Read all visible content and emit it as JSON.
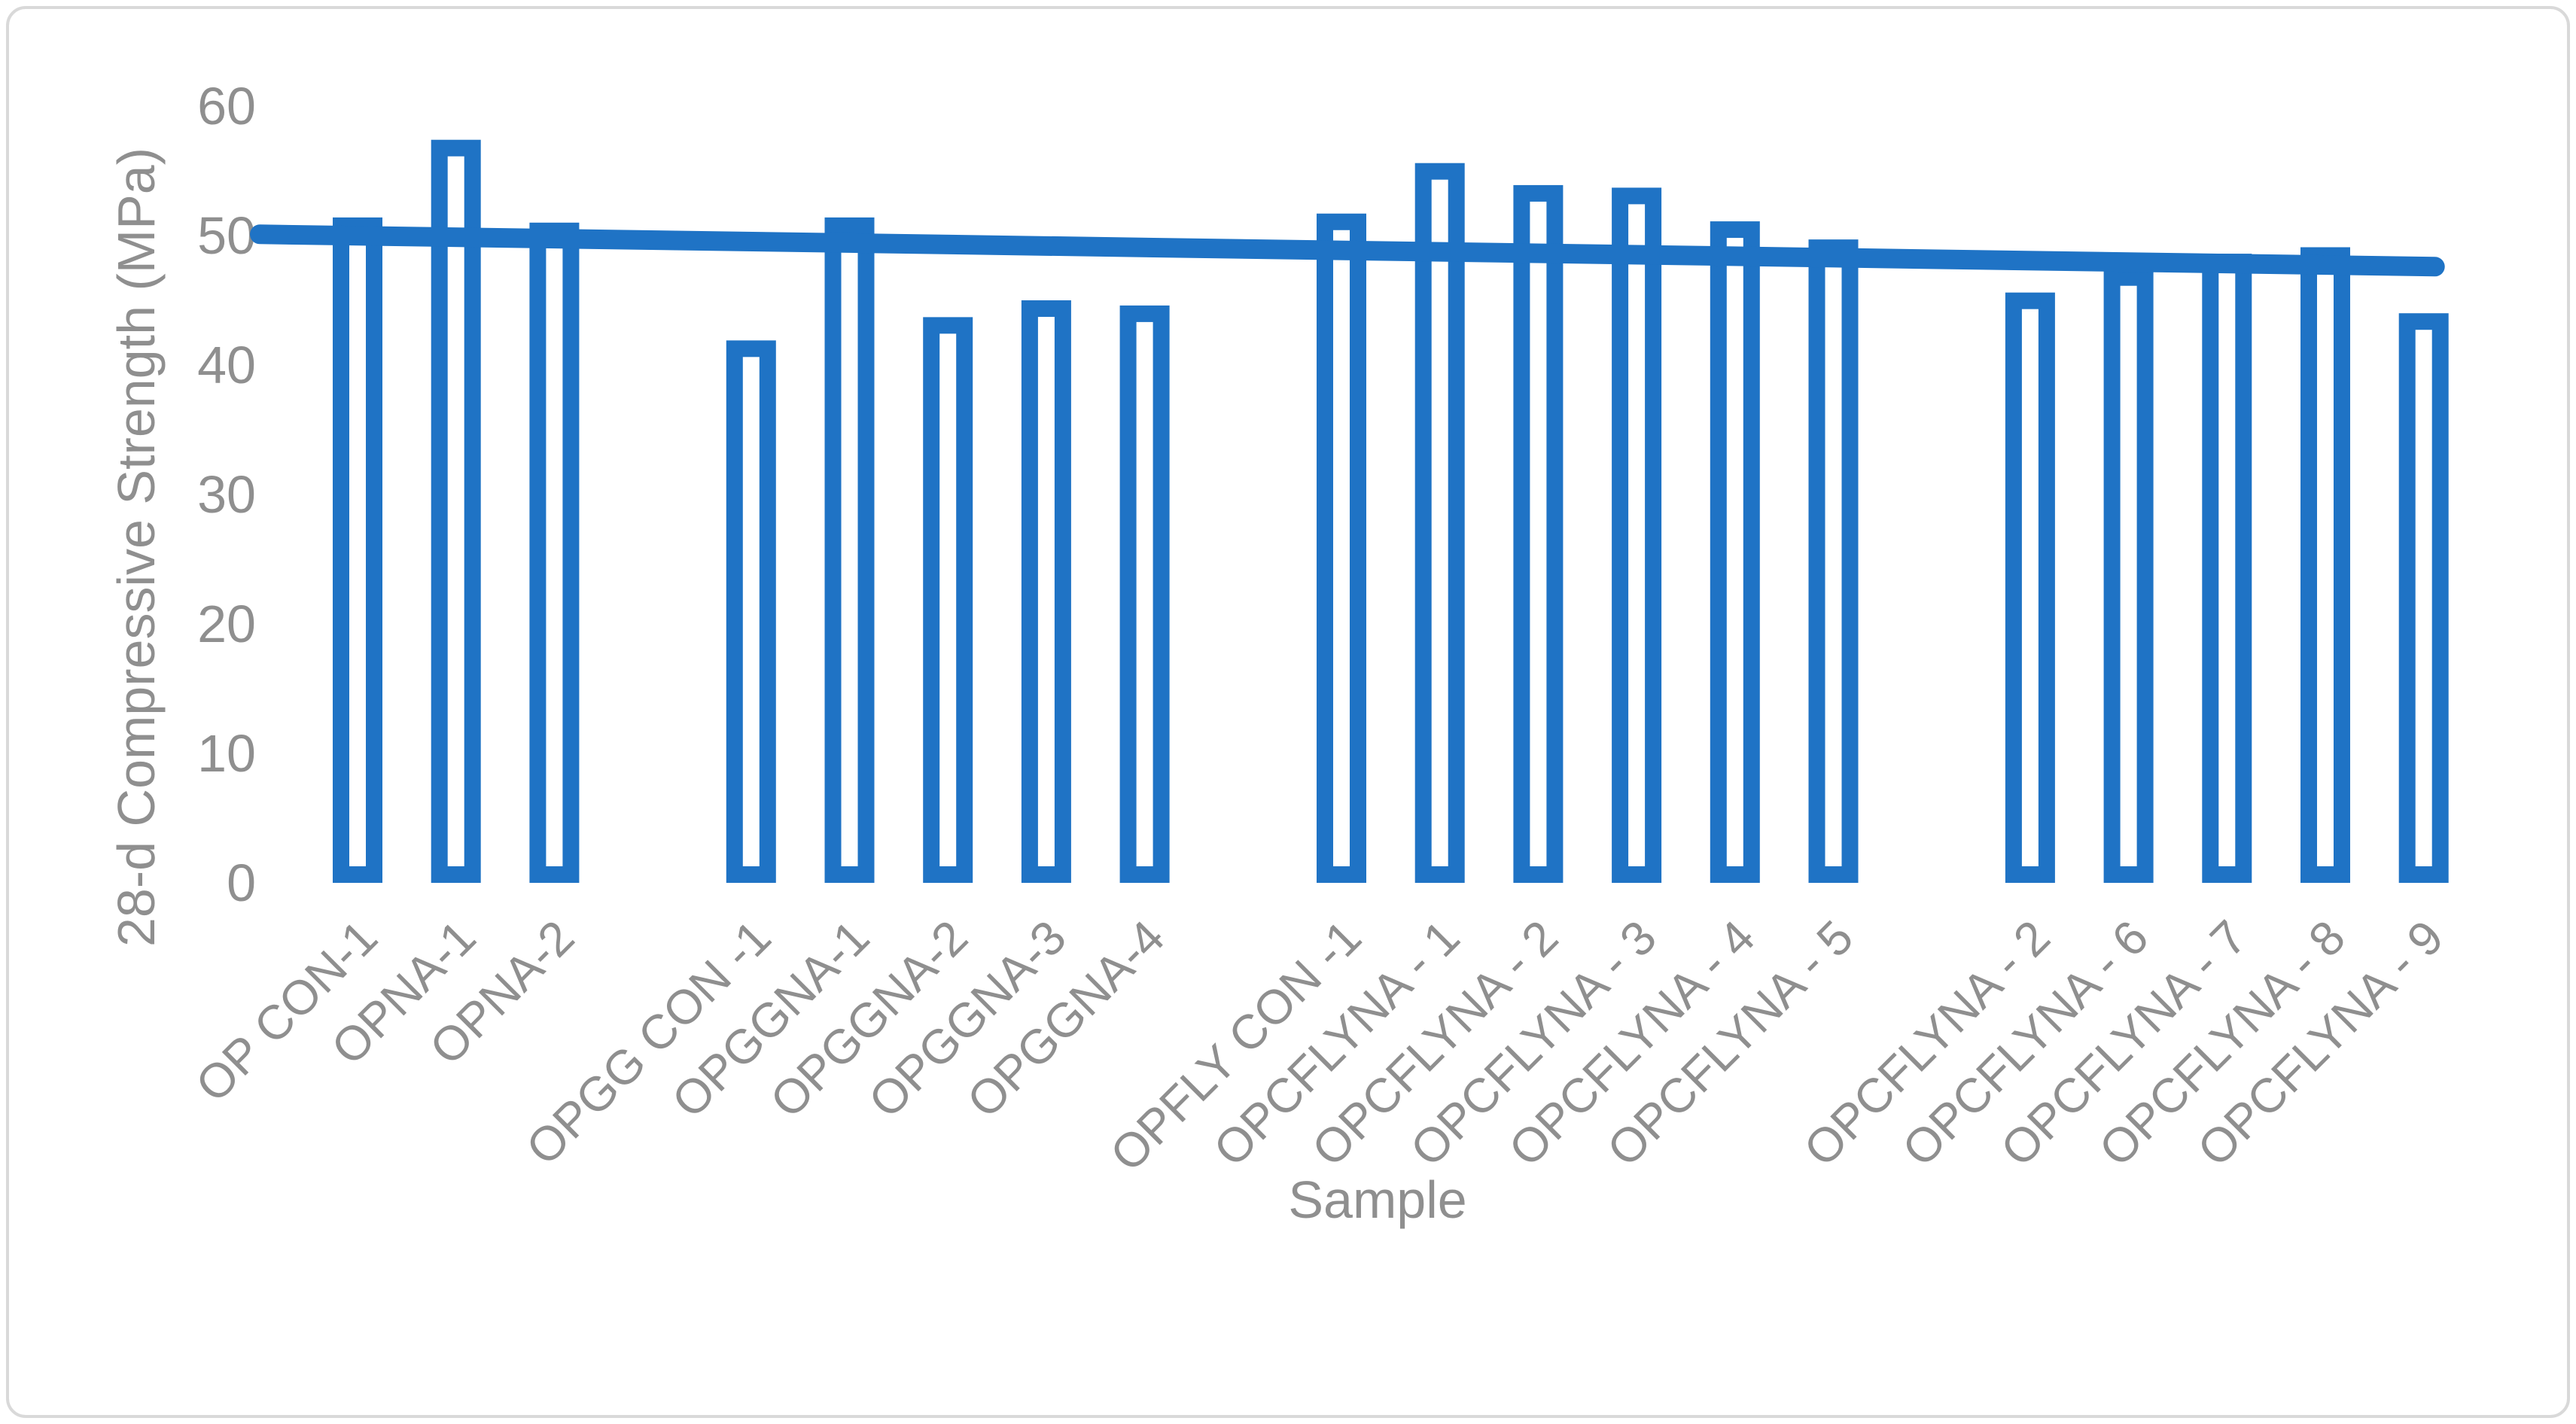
{
  "chart_data": {
    "type": "bar",
    "title": "",
    "xlabel": "Sample",
    "ylabel": "28-d Compressive Strength (MPa)",
    "categories": [
      "OP CON-1",
      "OPNA-1",
      "OPNA-2",
      "OPGG CON -1",
      "OPGGNA-1",
      "OPGGNA-2",
      "OPGGNA-3",
      "OPGGNA-4",
      "OPFLY CON -1",
      "OPCFLYNA - 1",
      "OPCFLYNA - 2",
      "OPCFLYNA - 3",
      "OPCFLYNA - 4",
      "OPCFLYNA - 5",
      "OPCFLYNA - 2",
      "OPCFLYNA - 6",
      "OPCFLYNA - 7",
      "OPCFLYNA - 8",
      "OPCFLYNA - 9"
    ],
    "values": [
      51.4,
      57.4,
      51.0,
      41.9,
      51.4,
      43.7,
      45.0,
      44.6,
      51.7,
      55.6,
      53.9,
      53.7,
      51.1,
      49.7,
      45.6,
      47.4,
      48.6,
      49.1,
      44.0
    ],
    "group_sizes": [
      3,
      5,
      6,
      5
    ],
    "ylim": [
      0,
      60
    ],
    "yticks": [
      0,
      10,
      20,
      30,
      40,
      50,
      60
    ],
    "grid": "off",
    "legend": "none",
    "bar_style": "hollow-outline",
    "trendline": {
      "start_value": 50.1,
      "end_value": 47.6
    },
    "colors": {
      "bar_outline": "#1f73c5",
      "trendline": "#1f73c5",
      "text_gray": "#8f8f8f",
      "frame_border": "#d9d9d9",
      "background": "#ffffff"
    }
  }
}
